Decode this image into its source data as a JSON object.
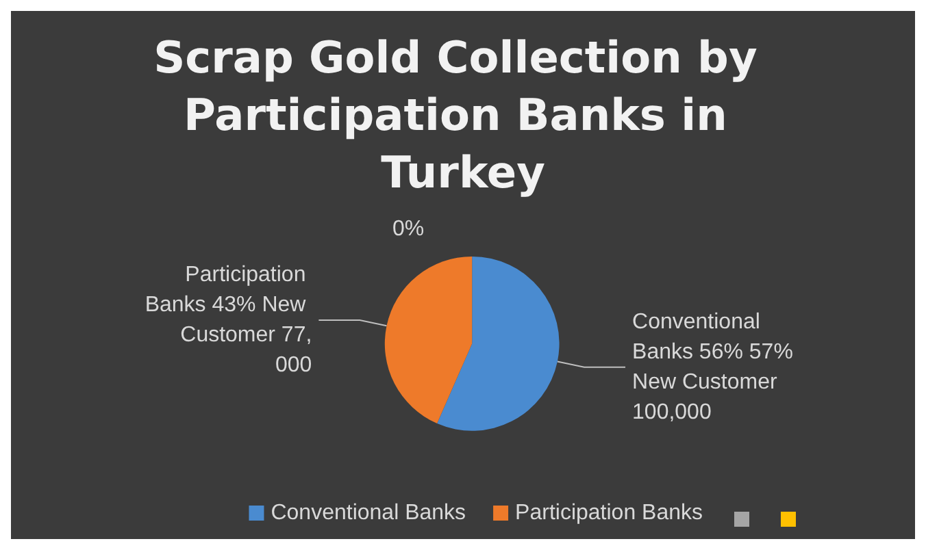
{
  "chart_data": {
    "type": "pie",
    "title": "Scrap Gold Collection by Participation Banks in Turkey",
    "categories": [
      "Conventional Banks",
      "Participation Banks",
      null,
      null
    ],
    "values": [
      56,
      43,
      0,
      0
    ],
    "colors": [
      "#4a8bd0",
      "#ee7a2a",
      "#a5a5a5",
      "#ffc000"
    ],
    "value_labels": [
      "Conventional Banks 56% 57% New Customer 100,000",
      "Participation Banks 43% New Customer 77,000",
      "0%",
      null
    ],
    "legend": "bottom"
  }
}
